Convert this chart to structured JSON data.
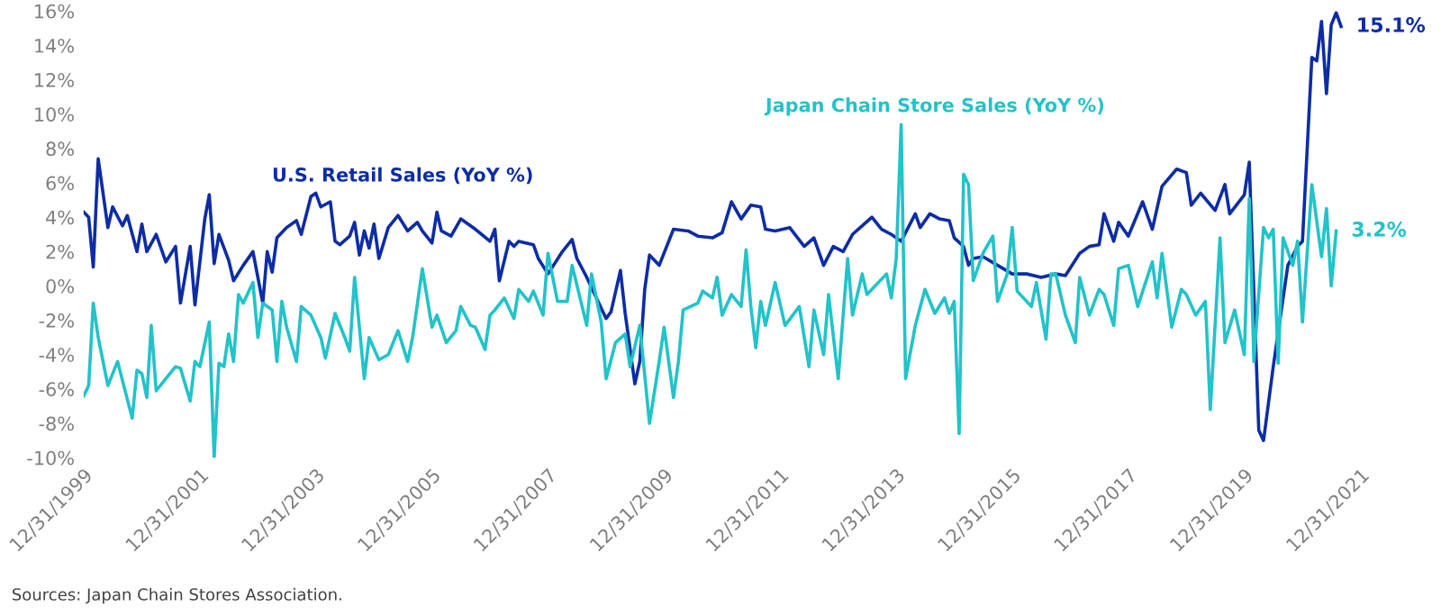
{
  "chart_data": {
    "type": "line",
    "annotations": [
      {
        "text": "15.1%",
        "x": "2021-09",
        "y": 15.1
      },
      {
        "text": "3.2%",
        "x": "2021-08",
        "y": 3.2
      },
      "Sources: Japan Chain Stores Association."
    ],
    "series": [
      {
        "name": "U.S. Retail Sales (YoY %)",
        "color": "#0d2ca6",
        "x": [
          "2000-01",
          "2000-02",
          "2000-03",
          "2000-04",
          "2000-06",
          "2000-07",
          "2000-09",
          "2000-10",
          "2000-12",
          "2001-01",
          "2001-02",
          "2001-04",
          "2001-06",
          "2001-08",
          "2001-09",
          "2001-11",
          "2001-12",
          "2002-02",
          "2002-03",
          "2002-04",
          "2002-05",
          "2002-07",
          "2002-08",
          "2002-10",
          "2002-12",
          "2003-02",
          "2003-03",
          "2003-04",
          "2003-05",
          "2003-07",
          "2003-09",
          "2003-10",
          "2003-12",
          "2004-01",
          "2004-02",
          "2004-04",
          "2004-05",
          "2004-06",
          "2004-08",
          "2004-09",
          "2004-10",
          "2004-11",
          "2004-12",
          "2005-01",
          "2005-02",
          "2005-04",
          "2005-06",
          "2005-08",
          "2005-10",
          "2005-11",
          "2006-01",
          "2006-02",
          "2006-03",
          "2006-05",
          "2006-07",
          "2006-10",
          "2007-01",
          "2007-02",
          "2007-03",
          "2007-05",
          "2007-06",
          "2007-07",
          "2007-10",
          "2007-11",
          "2008-01",
          "2008-04",
          "2008-06",
          "2008-07",
          "2008-09",
          "2009-01",
          "2009-02",
          "2009-04",
          "2009-05",
          "2009-07",
          "2009-08",
          "2009-09",
          "2009-10",
          "2009-12",
          "2010-03",
          "2010-06",
          "2010-08",
          "2010-11",
          "2011-01",
          "2011-03",
          "2011-05",
          "2011-07",
          "2011-09",
          "2011-10",
          "2011-12",
          "2012-03",
          "2012-06",
          "2012-08",
          "2012-10",
          "2012-12",
          "2013-02",
          "2013-04",
          "2013-08",
          "2013-10",
          "2013-12",
          "2014-02",
          "2014-05",
          "2014-06",
          "2014-08",
          "2014-10",
          "2014-12",
          "2015-01",
          "2015-03",
          "2015-04",
          "2015-05",
          "2015-07",
          "2015-10",
          "2016-01",
          "2016-04",
          "2016-07",
          "2016-10",
          "2016-12",
          "2017-03",
          "2017-05",
          "2017-07",
          "2017-08",
          "2017-10",
          "2017-11",
          "2018-01",
          "2018-04",
          "2018-06",
          "2018-08",
          "2018-11",
          "2019-01",
          "2019-02",
          "2019-04",
          "2019-07",
          "2019-09",
          "2019-10",
          "2020-01",
          "2020-02",
          "2020-04",
          "2020-05",
          "2020-07",
          "2020-10",
          "2020-12",
          "2021-01",
          "2021-03",
          "2021-04",
          "2021-05",
          "2021-06",
          "2021-07",
          "2021-08",
          "2021-09"
        ],
        "values": [
          4.3,
          4.0,
          1.1,
          7.4,
          3.4,
          4.6,
          3.5,
          4.1,
          2.0,
          3.6,
          2.0,
          3.0,
          1.4,
          2.3,
          -1.0,
          2.3,
          -1.1,
          3.9,
          5.3,
          1.3,
          3.0,
          1.5,
          0.3,
          1.2,
          2.0,
          -1.0,
          2.0,
          0.8,
          2.8,
          3.4,
          3.8,
          3.0,
          5.2,
          5.4,
          4.6,
          4.9,
          2.6,
          2.4,
          2.9,
          3.7,
          1.8,
          3.2,
          2.2,
          3.6,
          1.6,
          3.4,
          4.1,
          3.2,
          3.7,
          3.2,
          2.5,
          4.3,
          3.2,
          2.9,
          3.9,
          3.3,
          2.6,
          3.3,
          0.3,
          2.6,
          2.3,
          2.6,
          2.4,
          1.6,
          0.7,
          2.0,
          2.7,
          1.6,
          0.5,
          -1.9,
          -1.5,
          0.9,
          -1.6,
          -5.7,
          -4.4,
          -0.2,
          1.8,
          1.2,
          3.3,
          3.2,
          2.9,
          2.8,
          3.1,
          4.9,
          3.9,
          4.7,
          4.6,
          3.3,
          3.2,
          3.4,
          2.3,
          2.8,
          1.2,
          2.3,
          2.0,
          3.0,
          4.0,
          3.3,
          3.0,
          2.6,
          4.2,
          3.4,
          4.2,
          3.9,
          3.8,
          2.8,
          2.3,
          1.2,
          1.6,
          1.7,
          1.2,
          0.7,
          0.7,
          0.5,
          0.7,
          0.6,
          1.9,
          2.3,
          2.4,
          4.2,
          2.6,
          3.7,
          2.9,
          4.9,
          3.3,
          5.8,
          6.8,
          6.6,
          4.7,
          5.4,
          4.4,
          5.9,
          4.2,
          5.3,
          7.2,
          -8.4,
          -9.0,
          -4.7,
          1.2,
          2.3,
          2.6,
          13.3,
          13.1,
          15.4,
          11.2,
          15.2,
          15.9,
          15.1
        ]
      },
      {
        "name": "Japan Chain Store Sales (YoY %)",
        "color": "#22c3c9",
        "x": [
          "2000-01",
          "2000-02",
          "2000-03",
          "2000-04",
          "2000-06",
          "2000-08",
          "2000-11",
          "2000-12",
          "2001-01",
          "2001-02",
          "2001-03",
          "2001-04",
          "2001-06",
          "2001-08",
          "2001-09",
          "2001-11",
          "2001-12",
          "2002-01",
          "2002-03",
          "2002-04",
          "2002-05",
          "2002-06",
          "2002-07",
          "2002-08",
          "2002-09",
          "2002-10",
          "2002-12",
          "2003-01",
          "2003-02",
          "2003-04",
          "2003-05",
          "2003-06",
          "2003-07",
          "2003-09",
          "2003-10",
          "2003-12",
          "2004-02",
          "2004-03",
          "2004-05",
          "2004-07",
          "2004-08",
          "2004-09",
          "2004-11",
          "2004-12",
          "2005-02",
          "2005-04",
          "2005-06",
          "2005-08",
          "2005-09",
          "2005-11",
          "2006-01",
          "2006-02",
          "2006-04",
          "2006-06",
          "2006-07",
          "2006-09",
          "2006-10",
          "2006-12",
          "2007-01",
          "2007-02",
          "2007-04",
          "2007-06",
          "2007-07",
          "2007-09",
          "2007-10",
          "2007-12",
          "2008-01",
          "2008-03",
          "2008-05",
          "2008-06",
          "2008-09",
          "2008-10",
          "2008-12",
          "2009-01",
          "2009-03",
          "2009-05",
          "2009-06",
          "2009-08",
          "2009-10",
          "2009-12",
          "2010-01",
          "2010-03",
          "2010-04",
          "2010-05",
          "2010-08",
          "2010-09",
          "2010-11",
          "2010-12",
          "2011-01",
          "2011-03",
          "2011-05",
          "2011-06",
          "2011-07",
          "2011-08",
          "2011-09",
          "2011-10",
          "2011-12",
          "2012-02",
          "2012-05",
          "2012-07",
          "2012-08",
          "2012-10",
          "2012-11",
          "2013-01",
          "2013-03",
          "2013-04",
          "2013-06",
          "2013-07",
          "2013-11",
          "2013-12",
          "2014-01",
          "2014-02",
          "2014-03",
          "2014-05",
          "2014-07",
          "2014-09",
          "2014-11",
          "2014-12",
          "2015-01",
          "2015-02",
          "2015-03",
          "2015-04",
          "2015-05",
          "2015-07",
          "2015-09",
          "2015-10",
          "2015-12",
          "2016-01",
          "2016-02",
          "2016-05",
          "2016-06",
          "2016-08",
          "2016-09",
          "2016-10",
          "2016-12",
          "2017-02",
          "2017-03",
          "2017-05",
          "2017-07",
          "2017-08",
          "2017-10",
          "2017-11",
          "2018-01",
          "2018-03",
          "2018-06",
          "2018-07",
          "2018-08",
          "2018-10",
          "2018-12",
          "2019-01",
          "2019-03",
          "2019-05",
          "2019-06",
          "2019-08",
          "2019-09",
          "2019-11",
          "2020-01",
          "2020-02",
          "2020-03",
          "2020-05",
          "2020-06",
          "2020-07",
          "2020-08",
          "2020-09",
          "2020-11",
          "2020-12",
          "2021-01",
          "2021-03",
          "2021-05",
          "2021-06",
          "2021-07",
          "2021-08"
        ],
        "values": [
          -6.4,
          -5.8,
          -1.0,
          -3.0,
          -5.8,
          -4.4,
          -7.7,
          -4.9,
          -5.1,
          -6.5,
          -2.3,
          -6.1,
          -5.4,
          -4.7,
          -4.8,
          -6.7,
          -4.4,
          -4.7,
          -2.1,
          -10.0,
          -4.5,
          -4.7,
          -2.8,
          -4.4,
          -0.5,
          -1.0,
          0.2,
          -3.0,
          -1.0,
          -1.4,
          -4.4,
          -0.9,
          -2.4,
          -4.4,
          -1.2,
          -1.7,
          -3.0,
          -4.2,
          -1.6,
          -3.0,
          -3.8,
          0.5,
          -5.4,
          -3.0,
          -4.3,
          -4.0,
          -2.6,
          -4.4,
          -3.0,
          1.0,
          -2.4,
          -1.7,
          -3.3,
          -2.6,
          -1.2,
          -2.3,
          -2.4,
          -3.7,
          -1.7,
          -1.4,
          -0.7,
          -1.9,
          -0.2,
          -0.9,
          -0.3,
          -1.7,
          1.9,
          -0.9,
          -0.9,
          1.2,
          -2.3,
          0.7,
          -2.1,
          -5.4,
          -3.3,
          -2.8,
          -4.7,
          -2.3,
          -8.0,
          -4.4,
          -2.4,
          -6.5,
          -4.4,
          -1.4,
          -1.0,
          -0.3,
          -0.7,
          0.5,
          -1.7,
          -0.5,
          -1.2,
          2.1,
          -1.2,
          -3.6,
          -0.9,
          -2.3,
          0.2,
          -2.3,
          -1.2,
          -4.7,
          -1.4,
          -4.0,
          -0.5,
          -5.4,
          1.6,
          -1.7,
          0.7,
          -0.5,
          0.7,
          -0.7,
          1.6,
          9.4,
          -5.4,
          -2.3,
          -0.2,
          -1.6,
          -0.7,
          -1.6,
          -0.9,
          -8.6,
          6.5,
          5.9,
          0.3,
          1.9,
          2.9,
          -0.9,
          0.7,
          3.4,
          -0.3,
          -1.2,
          0.2,
          -3.1,
          0.7,
          0.7,
          -1.7,
          -3.3,
          0.5,
          -1.7,
          -0.2,
          -0.5,
          -2.3,
          1.0,
          1.2,
          -1.2,
          1.4,
          -0.7,
          1.9,
          -2.4,
          -0.2,
          -0.5,
          -1.7,
          -0.9,
          -7.2,
          2.8,
          -3.3,
          -1.4,
          -4.0,
          5.1,
          -4.4,
          3.4,
          2.8,
          3.3,
          -4.5,
          2.8,
          1.2,
          2.6,
          -2.1,
          5.9,
          1.7,
          4.5,
          0.0,
          3.2
        ]
      }
    ],
    "xlim": [
      "1999-12-31",
      "2021-12-31"
    ],
    "xticks": [
      {
        "value": "1999-12-31",
        "label": "12/31/1999"
      },
      {
        "value": "2001-12-31",
        "label": "12/31/2001"
      },
      {
        "value": "2003-12-31",
        "label": "12/31/2003"
      },
      {
        "value": "2005-12-31",
        "label": "12/31/2005"
      },
      {
        "value": "2007-12-31",
        "label": "12/31/2007"
      },
      {
        "value": "2009-12-31",
        "label": "12/31/2009"
      },
      {
        "value": "2011-12-31",
        "label": "12/31/2011"
      },
      {
        "value": "2013-12-31",
        "label": "12/31/2013"
      },
      {
        "value": "2015-12-31",
        "label": "12/31/2015"
      },
      {
        "value": "2017-12-31",
        "label": "12/31/2017"
      },
      {
        "value": "2019-12-31",
        "label": "12/31/2019"
      },
      {
        "value": "2021-12-31",
        "label": "12/31/2021"
      }
    ],
    "ylim": [
      -10,
      16
    ],
    "yticks": [
      {
        "value": -10,
        "label": "-10%"
      },
      {
        "value": -8,
        "label": "-8%"
      },
      {
        "value": -6,
        "label": "-6%"
      },
      {
        "value": -4,
        "label": "-4%"
      },
      {
        "value": -2,
        "label": "-2%"
      },
      {
        "value": 0,
        "label": "0%"
      },
      {
        "value": 2,
        "label": "2%"
      },
      {
        "value": 4,
        "label": "4%"
      },
      {
        "value": 6,
        "label": "6%"
      },
      {
        "value": 8,
        "label": "8%"
      },
      {
        "value": 10,
        "label": "10%"
      },
      {
        "value": 12,
        "label": "12%"
      },
      {
        "value": 14,
        "label": "14%"
      },
      {
        "value": 16,
        "label": "16%"
      }
    ],
    "grid": false,
    "legend": false,
    "marker": "none",
    "line_style": "solid"
  }
}
